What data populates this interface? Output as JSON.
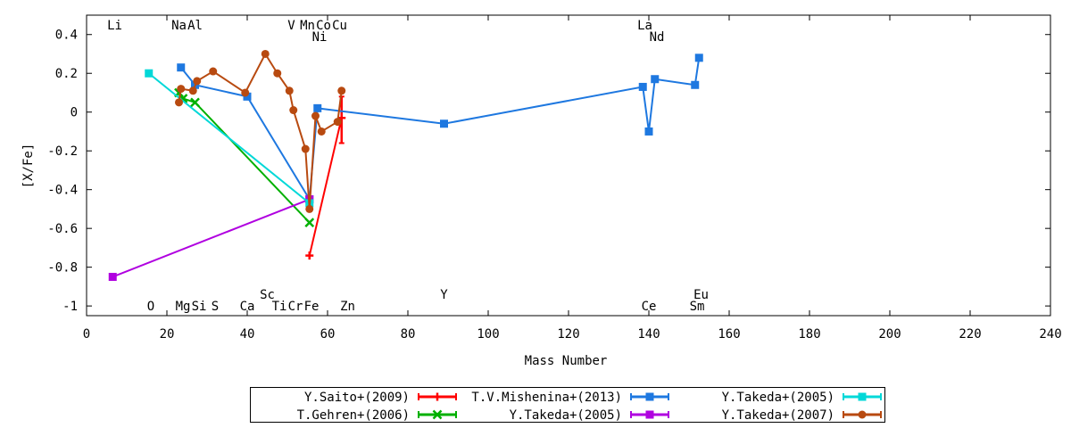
{
  "chart_data": {
    "type": "line",
    "xlabel": "Mass Number",
    "ylabel": "[X/Fe]",
    "xlim": [
      0,
      240
    ],
    "ylim": [
      -1.05,
      0.5
    ],
    "xticks": [
      0,
      20,
      40,
      60,
      80,
      100,
      120,
      140,
      160,
      180,
      200,
      220,
      240
    ],
    "yticks": [
      0.4,
      0.2,
      0,
      -0.2,
      -0.4,
      -0.6,
      -0.8,
      -1
    ],
    "grid": false,
    "legend_position": "bottom",
    "element_labels": [
      {
        "label": "Li",
        "x": 7,
        "y": 0.45
      },
      {
        "label": "Na",
        "x": 23,
        "y": 0.45
      },
      {
        "label": "Al",
        "x": 27,
        "y": 0.45
      },
      {
        "label": "V",
        "x": 51,
        "y": 0.45
      },
      {
        "label": "Mn",
        "x": 55,
        "y": 0.45
      },
      {
        "label": "Co",
        "x": 59,
        "y": 0.45
      },
      {
        "label": "Cu",
        "x": 63,
        "y": 0.45
      },
      {
        "label": "Ni",
        "x": 58,
        "y": 0.39
      },
      {
        "label": "La",
        "x": 139,
        "y": 0.45
      },
      {
        "label": "Nd",
        "x": 142,
        "y": 0.39
      },
      {
        "label": "Sc",
        "x": 45,
        "y": -0.94
      },
      {
        "label": "Y",
        "x": 89,
        "y": -0.94
      },
      {
        "label": "Eu",
        "x": 153,
        "y": -0.94
      },
      {
        "label": "O",
        "x": 16,
        "y": -1.0
      },
      {
        "label": "Mg",
        "x": 24,
        "y": -1.0
      },
      {
        "label": "Si",
        "x": 28,
        "y": -1.0
      },
      {
        "label": "S",
        "x": 32,
        "y": -1.0
      },
      {
        "label": "Ca",
        "x": 40,
        "y": -1.0
      },
      {
        "label": "Ti",
        "x": 48,
        "y": -1.0
      },
      {
        "label": "Cr",
        "x": 52,
        "y": -1.0
      },
      {
        "label": "Fe",
        "x": 56,
        "y": -1.0
      },
      {
        "label": "Zn",
        "x": 65,
        "y": -1.0
      },
      {
        "label": "Ce",
        "x": 140,
        "y": -1.0
      },
      {
        "label": "Sm",
        "x": 152,
        "y": -1.0
      }
    ],
    "series": [
      {
        "name": "Y.Saito+(2009)",
        "color": "#ff0000",
        "marker": "plus",
        "points": [
          [
            55.5,
            -0.74
          ],
          [
            63.5,
            -0.03
          ]
        ],
        "errorbars": [
          [
            63.5,
            -0.16,
            0.08
          ]
        ]
      },
      {
        "name": "T.Gehren+(2006)",
        "color": "#00b000",
        "marker": "x",
        "points": [
          [
            23,
            0.1
          ],
          [
            24,
            0.07
          ],
          [
            27,
            0.05
          ],
          [
            55.5,
            -0.57
          ]
        ]
      },
      {
        "name": "T.V.Mishenina+(2013)",
        "color": "#1e78e0",
        "marker": "square",
        "points": [
          [
            23.5,
            0.23
          ],
          [
            27,
            0.14
          ],
          [
            40,
            0.08
          ],
          [
            55.5,
            -0.45
          ],
          [
            57.5,
            0.02
          ],
          [
            89,
            -0.06
          ],
          [
            138.5,
            0.13
          ],
          [
            140,
            -0.1
          ],
          [
            141.5,
            0.17
          ],
          [
            151.5,
            0.14
          ],
          [
            152.5,
            0.28
          ]
        ]
      },
      {
        "name": "Y.Takeda+(2005)",
        "color": "#b000e0",
        "marker": "square",
        "points": [
          [
            6.5,
            -0.85
          ],
          [
            55.5,
            -0.45
          ]
        ]
      },
      {
        "name": "Y.Takeda+(2005)",
        "color": "#00d8d8",
        "marker": "square",
        "points": [
          [
            15.5,
            0.2
          ],
          [
            55.5,
            -0.47
          ]
        ]
      },
      {
        "name": "Y.Takeda+(2007)",
        "color": "#b84a10",
        "marker": "circle",
        "points": [
          [
            23,
            0.05
          ],
          [
            23.5,
            0.12
          ],
          [
            26.5,
            0.11
          ],
          [
            27.5,
            0.16
          ],
          [
            31.5,
            0.21
          ],
          [
            39.5,
            0.1
          ],
          [
            44.5,
            0.3
          ],
          [
            47.5,
            0.2
          ],
          [
            50.5,
            0.11
          ],
          [
            51.5,
            0.01
          ],
          [
            54.5,
            -0.19
          ],
          [
            55.5,
            -0.5
          ],
          [
            57,
            -0.02
          ],
          [
            58.5,
            -0.1
          ],
          [
            62.5,
            -0.05
          ],
          [
            63.5,
            0.11
          ]
        ]
      }
    ]
  }
}
